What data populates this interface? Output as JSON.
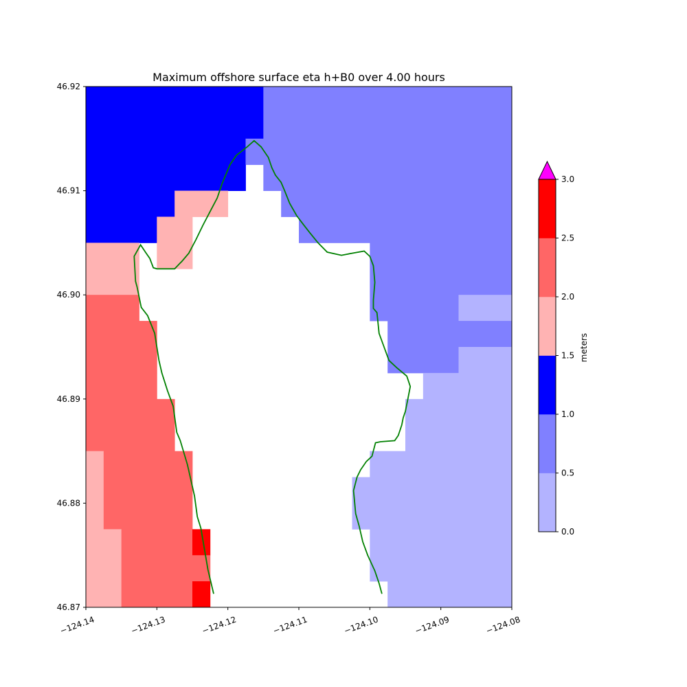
{
  "chart_data": {
    "type": "heatmap",
    "title": "Maximum offshore surface eta h+B0 over 4.00 hours",
    "xlabel": "",
    "ylabel": "",
    "xlim": [
      -124.14,
      -124.08
    ],
    "ylim": [
      46.87,
      46.92
    ],
    "x_ticks": [
      -124.14,
      -124.13,
      -124.12,
      -124.11,
      -124.1,
      -124.09,
      -124.08
    ],
    "x_tick_labels": [
      "−124.14",
      "−124.13",
      "−124.12",
      "−124.11",
      "−124.10",
      "−124.09",
      "−124.08"
    ],
    "y_ticks": [
      46.87,
      46.88,
      46.89,
      46.9,
      46.91,
      46.92
    ],
    "y_tick_labels": [
      "46.87",
      "46.88",
      "46.89",
      "46.90",
      "46.91",
      "46.92"
    ],
    "grid": false,
    "cell_size_deg": 0.0025,
    "grid_origin": [
      -124.14,
      46.87
    ],
    "level_bounds": [
      0,
      0.5,
      1.0,
      1.5,
      2.0,
      2.5,
      3.0
    ],
    "level_colors": [
      "#b3b3ff",
      "#8080ff",
      "#0000ff",
      "#ffb3b3",
      "#ff6666",
      "#ff0000"
    ],
    "extend_color": "#ff00ff",
    "cells": [
      [
        46.9175,
        46.92,
        -124.14,
        -124.115,
        1.25
      ],
      [
        46.9175,
        46.92,
        -124.115,
        -124.08,
        0.75
      ],
      [
        46.915,
        46.9175,
        -124.14,
        -124.115,
        1.25
      ],
      [
        46.915,
        46.9175,
        -124.115,
        -124.08,
        0.75
      ],
      [
        46.9125,
        46.915,
        -124.14,
        -124.1175,
        1.25
      ],
      [
        46.9125,
        46.915,
        -124.1175,
        -124.08,
        0.75
      ],
      [
        46.91,
        46.9125,
        -124.14,
        -124.1175,
        1.25
      ],
      [
        46.91,
        46.9125,
        -124.115,
        -124.08,
        0.75
      ],
      [
        46.9075,
        46.91,
        -124.14,
        -124.1275,
        1.25
      ],
      [
        46.9075,
        46.91,
        -124.1275,
        -124.12,
        1.75
      ],
      [
        46.9075,
        46.91,
        -124.1125,
        -124.08,
        0.75
      ],
      [
        46.905,
        46.9075,
        -124.14,
        -124.13,
        1.25
      ],
      [
        46.905,
        46.9075,
        -124.13,
        -124.125,
        1.75
      ],
      [
        46.905,
        46.9075,
        -124.11,
        -124.08,
        0.75
      ],
      [
        46.9025,
        46.905,
        -124.14,
        -124.1325,
        1.75
      ],
      [
        46.9025,
        46.905,
        -124.13,
        -124.125,
        1.75
      ],
      [
        46.9025,
        46.905,
        -124.1,
        -124.08,
        0.75
      ],
      [
        46.9,
        46.9025,
        -124.14,
        -124.1325,
        1.75
      ],
      [
        46.9,
        46.9025,
        -124.1,
        -124.08,
        0.75
      ],
      [
        46.8975,
        46.9,
        -124.14,
        -124.1325,
        2.25
      ],
      [
        46.8975,
        46.9,
        -124.1,
        -124.0875,
        0.75
      ],
      [
        46.8975,
        46.9,
        -124.0875,
        -124.08,
        0.25
      ],
      [
        46.895,
        46.8975,
        -124.14,
        -124.13,
        2.25
      ],
      [
        46.895,
        46.8975,
        -124.0975,
        -124.08,
        0.75
      ],
      [
        46.8925,
        46.895,
        -124.14,
        -124.13,
        2.25
      ],
      [
        46.8925,
        46.895,
        -124.0975,
        -124.0875,
        0.75
      ],
      [
        46.8925,
        46.895,
        -124.0875,
        -124.08,
        0.25
      ],
      [
        46.89,
        46.8925,
        -124.14,
        -124.13,
        2.25
      ],
      [
        46.89,
        46.8925,
        -124.0925,
        -124.08,
        0.25
      ],
      [
        46.8875,
        46.89,
        -124.14,
        -124.1275,
        2.25
      ],
      [
        46.8875,
        46.89,
        -124.095,
        -124.08,
        0.25
      ],
      [
        46.885,
        46.8875,
        -124.14,
        -124.1275,
        2.25
      ],
      [
        46.885,
        46.8875,
        -124.095,
        -124.08,
        0.25
      ],
      [
        46.8825,
        46.885,
        -124.14,
        -124.1375,
        1.75
      ],
      [
        46.8825,
        46.885,
        -124.1375,
        -124.125,
        2.25
      ],
      [
        46.8825,
        46.885,
        -124.1,
        -124.08,
        0.25
      ],
      [
        46.88,
        46.8825,
        -124.14,
        -124.1375,
        1.75
      ],
      [
        46.88,
        46.8825,
        -124.1375,
        -124.125,
        2.25
      ],
      [
        46.88,
        46.8825,
        -124.1025,
        -124.08,
        0.25
      ],
      [
        46.8775,
        46.88,
        -124.14,
        -124.1375,
        1.75
      ],
      [
        46.8775,
        46.88,
        -124.1375,
        -124.125,
        2.25
      ],
      [
        46.8775,
        46.88,
        -124.1025,
        -124.08,
        0.25
      ],
      [
        46.875,
        46.8775,
        -124.14,
        -124.135,
        1.75
      ],
      [
        46.875,
        46.8775,
        -124.135,
        -124.125,
        2.25
      ],
      [
        46.875,
        46.8775,
        -124.125,
        -124.1225,
        2.75
      ],
      [
        46.875,
        46.8775,
        -124.1,
        -124.08,
        0.25
      ],
      [
        46.8725,
        46.875,
        -124.14,
        -124.135,
        1.75
      ],
      [
        46.8725,
        46.875,
        -124.135,
        -124.1225,
        2.25
      ],
      [
        46.8725,
        46.875,
        -124.1,
        -124.08,
        0.25
      ],
      [
        46.87,
        46.8725,
        -124.14,
        -124.135,
        1.75
      ],
      [
        46.87,
        46.8725,
        -124.135,
        -124.125,
        2.25
      ],
      [
        46.87,
        46.8725,
        -124.125,
        -124.1225,
        2.75
      ],
      [
        46.87,
        46.8725,
        -124.0975,
        -124.08,
        0.25
      ]
    ],
    "shoreline": {
      "color": "#008000",
      "points": [
        [
          -124.122,
          46.8713
        ],
        [
          -124.1228,
          46.8736
        ],
        [
          -124.1238,
          46.8776
        ],
        [
          -124.1243,
          46.8787
        ],
        [
          -124.1247,
          46.8807
        ],
        [
          -124.1257,
          46.8837
        ],
        [
          -124.1267,
          46.886
        ],
        [
          -124.1272,
          46.8868
        ],
        [
          -124.1277,
          46.8893
        ],
        [
          -124.1285,
          46.8908
        ],
        [
          -124.1293,
          46.8925
        ],
        [
          -124.1297,
          46.8937
        ],
        [
          -124.13,
          46.895
        ],
        [
          -124.1303,
          46.8963
        ],
        [
          -124.1313,
          46.898
        ],
        [
          -124.1322,
          46.8988
        ],
        [
          -124.1328,
          46.9008
        ],
        [
          -124.133,
          46.9013
        ],
        [
          -124.1332,
          46.9037
        ],
        [
          -124.1323,
          46.9048
        ],
        [
          -124.1315,
          46.904
        ],
        [
          -124.131,
          46.9035
        ],
        [
          -124.1305,
          46.9026
        ],
        [
          -124.13,
          46.9025
        ],
        [
          -124.1275,
          46.9025
        ],
        [
          -124.1268,
          46.903
        ],
        [
          -124.1265,
          46.9032
        ],
        [
          -124.1255,
          46.904
        ],
        [
          -124.1245,
          46.9053
        ],
        [
          -124.1235,
          46.9067
        ],
        [
          -124.1225,
          46.908
        ],
        [
          -124.1215,
          46.9093
        ],
        [
          -124.1208,
          46.9107
        ],
        [
          -124.1197,
          46.9125
        ],
        [
          -124.1188,
          46.9134
        ],
        [
          -124.1173,
          46.9142
        ],
        [
          -124.1163,
          46.9148
        ],
        [
          -124.1153,
          46.9142
        ],
        [
          -124.1143,
          46.9132
        ],
        [
          -124.1138,
          46.9122
        ],
        [
          -124.1133,
          46.9115
        ],
        [
          -124.1125,
          46.9108
        ],
        [
          -124.112,
          46.91
        ],
        [
          -124.1113,
          46.9088
        ],
        [
          -124.1103,
          46.9076
        ],
        [
          -124.1093,
          46.9067
        ],
        [
          -124.1085,
          46.906
        ],
        [
          -124.1073,
          46.905
        ],
        [
          -124.106,
          46.9041
        ],
        [
          -124.104,
          46.9038
        ],
        [
          -124.1025,
          46.904
        ],
        [
          -124.1008,
          46.9042
        ],
        [
          -124.1,
          46.9037
        ],
        [
          -124.0995,
          46.9028
        ],
        [
          -124.0993,
          46.9012
        ],
        [
          -124.0995,
          46.8995
        ],
        [
          -124.0995,
          46.8987
        ],
        [
          -124.099,
          46.8983
        ],
        [
          -124.0987,
          46.8963
        ],
        [
          -124.098,
          46.895
        ],
        [
          -124.0973,
          46.8937
        ],
        [
          -124.0962,
          46.893
        ],
        [
          -124.0948,
          46.8922
        ],
        [
          -124.0943,
          46.8912
        ],
        [
          -124.0947,
          46.8898
        ],
        [
          -124.095,
          46.8888
        ],
        [
          -124.0953,
          46.8882
        ],
        [
          -124.0955,
          46.8875
        ],
        [
          -124.096,
          46.8865
        ],
        [
          -124.0965,
          46.886
        ],
        [
          -124.0985,
          46.8859
        ],
        [
          -124.0992,
          46.8858
        ],
        [
          -124.0997,
          46.8845
        ],
        [
          -124.1005,
          46.884
        ],
        [
          -124.1013,
          46.8832
        ],
        [
          -124.1018,
          46.8825
        ],
        [
          -124.1023,
          46.8812
        ],
        [
          -124.1022,
          46.8805
        ],
        [
          -124.102,
          46.879
        ],
        [
          -124.1015,
          46.8778
        ],
        [
          -124.101,
          46.8763
        ],
        [
          -124.1003,
          46.875
        ],
        [
          -124.0993,
          46.8735
        ],
        [
          -124.0987,
          46.8723
        ],
        [
          -124.0983,
          46.8713
        ]
      ]
    },
    "colorbar": {
      "label": "meters",
      "ticks": [
        0.0,
        0.5,
        1.0,
        1.5,
        2.0,
        2.5,
        3.0
      ],
      "tick_labels": [
        "0.0",
        "0.5",
        "1.0",
        "1.5",
        "2.0",
        "2.5",
        "3.0"
      ],
      "extend": "max"
    }
  }
}
